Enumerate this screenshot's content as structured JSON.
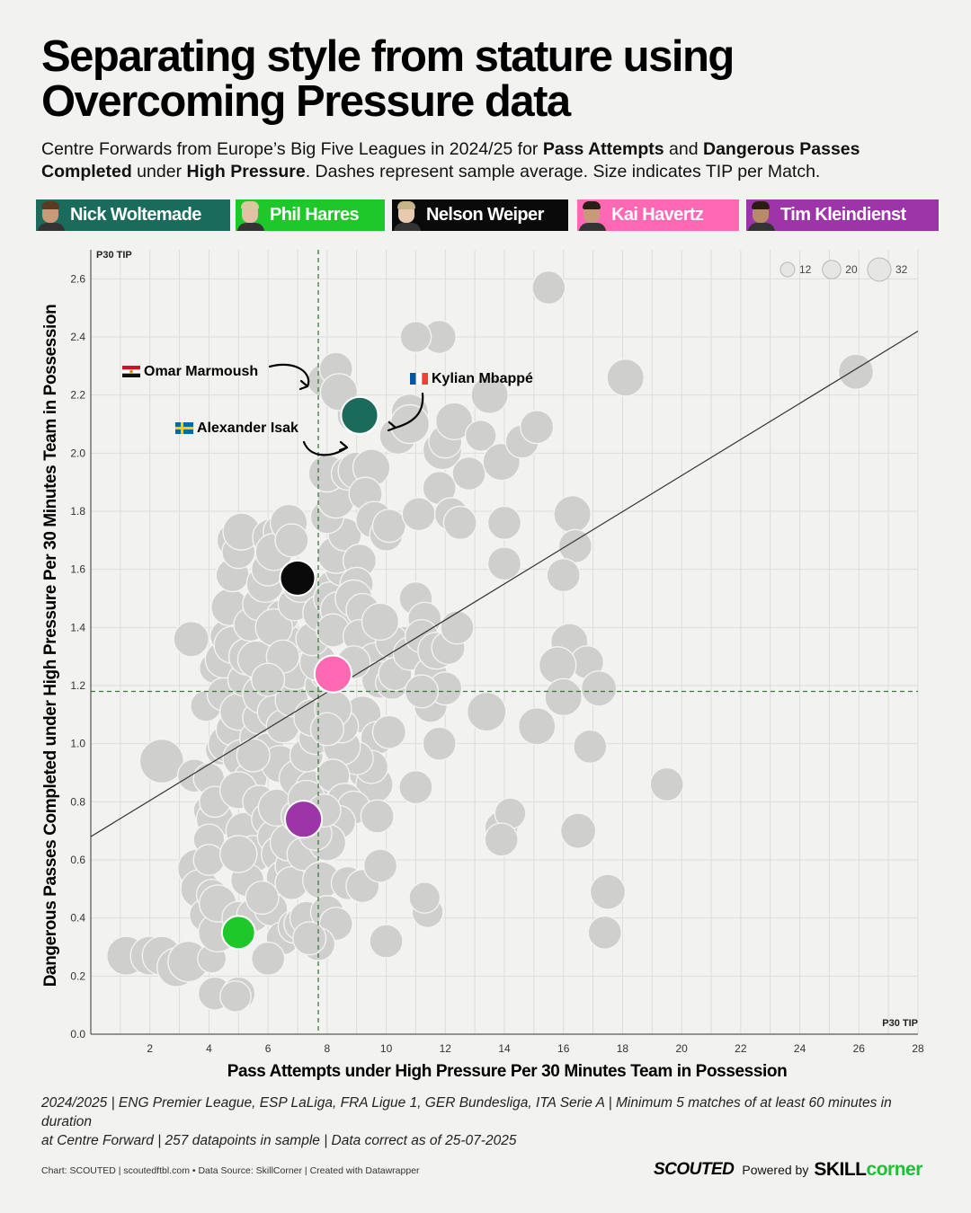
{
  "header": {
    "title": "Separating style from stature using Overcoming Pressure data",
    "subtitle_parts": [
      {
        "t": "Centre Forwards from Europe’s Big Five Leagues in 2024/25 for ",
        "b": false
      },
      {
        "t": "Pass Attempts",
        "b": true
      },
      {
        "t": " and ",
        "b": false
      },
      {
        "t": "Dangerous Passes Completed",
        "b": true
      },
      {
        "t": " under ",
        "b": false
      },
      {
        "t": "High Pressure",
        "b": true
      },
      {
        "t": ". Dashes represent sample average. Size indicates TIP per Match.",
        "b": false
      }
    ]
  },
  "legend": [
    {
      "name": "Nick Woltemade",
      "color": "#1a6b5c"
    },
    {
      "name": "Phil Harres",
      "color": "#1fc82a"
    },
    {
      "name": "Nelson Weiper",
      "color": "#0a0a0a"
    },
    {
      "name": "Kai Havertz",
      "color": "#ff69b4"
    },
    {
      "name": "Tim Kleindienst",
      "color": "#9c36a8"
    }
  ],
  "chart_data": {
    "type": "scatter",
    "xlabel": "Pass Attempts under High Pressure Per 30 Minutes Team in Possession",
    "ylabel": "Dangerous Passes Completed under High Pressure Per 30 Minutes Team in Possession",
    "xlim": [
      0,
      28
    ],
    "ylim": [
      0,
      2.7
    ],
    "xticks": [
      2,
      4,
      6,
      8,
      10,
      12,
      14,
      16,
      18,
      20,
      22,
      24,
      26,
      28
    ],
    "yticks": [
      0.0,
      0.2,
      0.4,
      0.6,
      0.8,
      1.0,
      1.2,
      1.4,
      1.6,
      1.8,
      2.0,
      2.2,
      2.4,
      2.6
    ],
    "x_axis_tag": "P30 TIP",
    "y_axis_tag": "P30 TIP",
    "avg_x": 7.7,
    "avg_y": 1.18,
    "trend_line": {
      "from": [
        0,
        0.68
      ],
      "to": [
        28,
        2.42
      ]
    },
    "size_legend": [
      {
        "label": "12",
        "value": 12
      },
      {
        "label": "20",
        "value": 20
      },
      {
        "label": "32",
        "value": 32
      }
    ],
    "background_points": [
      [
        1.2,
        0.27,
        22
      ],
      [
        2.0,
        0.27,
        22
      ],
      [
        2.4,
        0.27,
        22
      ],
      [
        2.9,
        0.23,
        22
      ],
      [
        3.3,
        0.25,
        24
      ],
      [
        4.1,
        0.26,
        12
      ],
      [
        4.2,
        0.14,
        16
      ],
      [
        2.4,
        0.94,
        28
      ],
      [
        3.5,
        0.89,
        16
      ],
      [
        3.6,
        0.57,
        22
      ],
      [
        3.7,
        0.5,
        22
      ],
      [
        3.9,
        0.41,
        16
      ],
      [
        4.1,
        0.48,
        14
      ],
      [
        4.0,
        0.77,
        14
      ],
      [
        4.0,
        0.88,
        14
      ],
      [
        4.2,
        0.74,
        20
      ],
      [
        4.0,
        0.67,
        14
      ],
      [
        4.0,
        0.6,
        14
      ],
      [
        4.2,
        0.8,
        14
      ],
      [
        4.3,
        0.35,
        22
      ],
      [
        4.3,
        0.45,
        20
      ],
      [
        3.9,
        1.13,
        14
      ],
      [
        4.2,
        1.26,
        14
      ],
      [
        4.4,
        0.98,
        14
      ],
      [
        3.4,
        1.36,
        18
      ],
      [
        4.6,
        1.0,
        20
      ],
      [
        4.5,
        1.17,
        16
      ],
      [
        4.5,
        1.29,
        20
      ],
      [
        4.6,
        1.37,
        16
      ],
      [
        4.8,
        1.34,
        20
      ],
      [
        4.7,
        1.47,
        20
      ],
      [
        4.8,
        1.58,
        16
      ],
      [
        4.9,
        1.7,
        20
      ],
      [
        5.0,
        1.66,
        16
      ],
      [
        5.1,
        1.73,
        20
      ],
      [
        4.8,
        1.05,
        16
      ],
      [
        5.0,
        1.11,
        20
      ],
      [
        5.2,
        1.22,
        16
      ],
      [
        5.3,
        1.3,
        20
      ],
      [
        5.1,
        0.95,
        20
      ],
      [
        5.4,
        0.88,
        16
      ],
      [
        5.0,
        0.84,
        20
      ],
      [
        5.2,
        0.7,
        20
      ],
      [
        5.5,
        0.62,
        20
      ],
      [
        5.3,
        0.53,
        16
      ],
      [
        5.0,
        0.4,
        16
      ],
      [
        5.5,
        0.41,
        16
      ],
      [
        5.0,
        0.62,
        20
      ],
      [
        5.6,
        1.02,
        16
      ],
      [
        5.7,
        1.09,
        16
      ],
      [
        5.8,
        1.17,
        22
      ],
      [
        5.9,
        1.25,
        16
      ],
      [
        5.6,
        1.29,
        20
      ],
      [
        5.4,
        1.41,
        16
      ],
      [
        5.7,
        1.48,
        16
      ],
      [
        5.9,
        1.55,
        20
      ],
      [
        6.1,
        1.71,
        20
      ],
      [
        6.0,
        1.6,
        16
      ],
      [
        6.4,
        1.73,
        16
      ],
      [
        6.2,
        1.66,
        20
      ],
      [
        6.7,
        1.76,
        20
      ],
      [
        6.8,
        1.7,
        16
      ],
      [
        6.0,
        0.98,
        16
      ],
      [
        6.4,
        0.93,
        20
      ],
      [
        6.2,
        1.11,
        16
      ],
      [
        6.5,
        1.06,
        16
      ],
      [
        6.8,
        1.15,
        16
      ],
      [
        6.9,
        1.25,
        20
      ],
      [
        6.7,
        1.35,
        16
      ],
      [
        6.5,
        1.44,
        16
      ],
      [
        6.2,
        1.4,
        20
      ],
      [
        6.9,
        1.48,
        16
      ],
      [
        7.1,
        1.55,
        20
      ],
      [
        6.5,
        1.3,
        16
      ],
      [
        6.0,
        1.22,
        16
      ],
      [
        5.5,
        0.96,
        16
      ],
      [
        5.7,
        0.8,
        16
      ],
      [
        6.0,
        0.74,
        16
      ],
      [
        6.2,
        0.68,
        16
      ],
      [
        6.4,
        0.62,
        20
      ],
      [
        6.5,
        0.54,
        16
      ],
      [
        6.8,
        0.58,
        16
      ],
      [
        6.7,
        0.66,
        20
      ],
      [
        6.3,
        0.78,
        20
      ],
      [
        6.1,
        0.43,
        16
      ],
      [
        5.8,
        0.47,
        16
      ],
      [
        6.5,
        0.33,
        16
      ],
      [
        6.9,
        0.37,
        16
      ],
      [
        7.1,
        0.38,
        16
      ],
      [
        7.3,
        0.4,
        16
      ],
      [
        6.8,
        0.52,
        16
      ],
      [
        7.2,
        0.62,
        16
      ],
      [
        6.0,
        0.26,
        16
      ],
      [
        5.0,
        0.14,
        16
      ],
      [
        4.9,
        0.13,
        14
      ],
      [
        7.0,
        0.75,
        16
      ],
      [
        7.0,
        0.88,
        20
      ],
      [
        7.3,
        0.78,
        16
      ],
      [
        7.5,
        0.85,
        16
      ],
      [
        7.3,
        0.96,
        16
      ],
      [
        7.6,
        1.02,
        16
      ],
      [
        7.5,
        1.09,
        20
      ],
      [
        7.8,
        1.2,
        16
      ],
      [
        8.0,
        1.24,
        16
      ],
      [
        7.7,
        1.28,
        20
      ],
      [
        7.5,
        1.36,
        16
      ],
      [
        7.8,
        1.45,
        20
      ],
      [
        8.2,
        1.54,
        16
      ],
      [
        8.1,
        1.5,
        16
      ],
      [
        8.4,
        1.46,
        20
      ],
      [
        8.2,
        1.39,
        16
      ],
      [
        8.5,
        1.6,
        16
      ],
      [
        8.3,
        1.65,
        20
      ],
      [
        8.6,
        1.72,
        16
      ],
      [
        8.0,
        1.78,
        16
      ],
      [
        8.3,
        1.84,
        20
      ],
      [
        8.0,
        1.93,
        20
      ],
      [
        8.7,
        1.93,
        16
      ],
      [
        9.0,
        1.94,
        20
      ],
      [
        8.9,
        2.13,
        16
      ],
      [
        7.9,
        2.25,
        16
      ],
      [
        8.3,
        2.29,
        16
      ],
      [
        8.4,
        2.21,
        20
      ],
      [
        9.5,
        1.95,
        20
      ],
      [
        9.3,
        1.86,
        16
      ],
      [
        9.6,
        1.77,
        20
      ],
      [
        10.0,
        1.72,
        16
      ],
      [
        10.1,
        1.75,
        16
      ],
      [
        9.1,
        1.63,
        16
      ],
      [
        9.0,
        1.55,
        16
      ],
      [
        8.9,
        1.5,
        20
      ],
      [
        9.2,
        1.46,
        16
      ],
      [
        9.1,
        1.37,
        16
      ],
      [
        9.6,
        1.29,
        16
      ],
      [
        9.8,
        1.22,
        20
      ],
      [
        10.2,
        1.21,
        16
      ],
      [
        10.6,
        1.34,
        20
      ],
      [
        10.2,
        1.35,
        16
      ],
      [
        9.8,
        1.42,
        20
      ],
      [
        8.9,
        1.28,
        16
      ],
      [
        9.2,
        1.1,
        20
      ],
      [
        9.7,
        1.02,
        16
      ],
      [
        9.3,
        0.9,
        16
      ],
      [
        9.6,
        0.86,
        20
      ],
      [
        9.5,
        0.92,
        16
      ],
      [
        9.0,
        0.95,
        16
      ],
      [
        8.5,
        0.99,
        20
      ],
      [
        8.5,
        1.06,
        16
      ],
      [
        8.2,
        1.12,
        20
      ],
      [
        8.0,
        1.05,
        16
      ],
      [
        8.2,
        0.89,
        16
      ],
      [
        8.6,
        0.8,
        20
      ],
      [
        8.9,
        0.78,
        16
      ],
      [
        8.4,
        0.73,
        16
      ],
      [
        8.0,
        0.66,
        20
      ],
      [
        7.6,
        0.69,
        16
      ],
      [
        7.3,
        0.81,
        20
      ],
      [
        7.9,
        0.77,
        16
      ],
      [
        7.8,
        0.53,
        20
      ],
      [
        8.0,
        0.42,
        16
      ],
      [
        8.3,
        0.38,
        16
      ],
      [
        7.7,
        0.31,
        16
      ],
      [
        7.4,
        0.33,
        16
      ],
      [
        8.7,
        0.52,
        16
      ],
      [
        9.2,
        0.51,
        16
      ],
      [
        9.7,
        0.75,
        16
      ],
      [
        9.8,
        0.58,
        16
      ],
      [
        10.0,
        0.32,
        16
      ],
      [
        11.0,
        0.85,
        16
      ],
      [
        10.1,
        1.04,
        16
      ],
      [
        10.3,
        1.24,
        16
      ],
      [
        10.8,
        1.31,
        16
      ],
      [
        11.0,
        1.5,
        16
      ],
      [
        11.3,
        1.43,
        16
      ],
      [
        11.2,
        1.37,
        16
      ],
      [
        11.5,
        1.13,
        16
      ],
      [
        11.5,
        1.24,
        16
      ],
      [
        11.7,
        1.32,
        20
      ],
      [
        12.1,
        1.33,
        16
      ],
      [
        12.4,
        1.4,
        16
      ],
      [
        12.0,
        1.19,
        16
      ],
      [
        11.8,
        1.0,
        16
      ],
      [
        11.2,
        1.18,
        16
      ],
      [
        11.4,
        0.42,
        14
      ],
      [
        10.4,
        2.06,
        20
      ],
      [
        10.8,
        2.14,
        20
      ],
      [
        10.8,
        2.1,
        22
      ],
      [
        11.1,
        1.79,
        16
      ],
      [
        11.9,
        2.01,
        22
      ],
      [
        12.0,
        2.04,
        16
      ],
      [
        11.8,
        1.88,
        16
      ],
      [
        12.2,
        1.79,
        16
      ],
      [
        12.5,
        1.76,
        16
      ],
      [
        12.3,
        2.11,
        20
      ],
      [
        13.2,
        2.06,
        14
      ],
      [
        12.8,
        1.93,
        16
      ],
      [
        13.5,
        2.2,
        20
      ],
      [
        13.9,
        1.97,
        20
      ],
      [
        14.6,
        2.04,
        16
      ],
      [
        15.1,
        2.09,
        16
      ],
      [
        11.8,
        2.4,
        16
      ],
      [
        11.0,
        2.4,
        14
      ],
      [
        15.5,
        2.57,
        16
      ],
      [
        18.1,
        2.26,
        20
      ],
      [
        25.9,
        2.28,
        18
      ],
      [
        16.3,
        1.79,
        20
      ],
      [
        16.4,
        1.68,
        16
      ],
      [
        14.0,
        1.76,
        16
      ],
      [
        14.0,
        1.62,
        16
      ],
      [
        16.0,
        1.58,
        16
      ],
      [
        16.2,
        1.35,
        20
      ],
      [
        16.8,
        1.28,
        16
      ],
      [
        15.8,
        1.27,
        20
      ],
      [
        17.2,
        1.19,
        18
      ],
      [
        16.0,
        1.16,
        20
      ],
      [
        15.1,
        1.06,
        20
      ],
      [
        13.4,
        1.11,
        22
      ],
      [
        16.9,
        0.99,
        16
      ],
      [
        19.5,
        0.86,
        16
      ],
      [
        16.5,
        0.7,
        18
      ],
      [
        17.5,
        0.49,
        18
      ],
      [
        17.4,
        0.35,
        16
      ],
      [
        13.9,
        0.71,
        16
      ],
      [
        14.2,
        0.76,
        14
      ],
      [
        13.9,
        0.67,
        16
      ],
      [
        11.3,
        0.47,
        14
      ]
    ],
    "highlight_points": [
      {
        "player": "Nick Woltemade",
        "x": 9.1,
        "y": 2.13,
        "size": 20,
        "color": "#1a6b5c"
      },
      {
        "player": "Nelson Weiper",
        "x": 7.0,
        "y": 1.57,
        "size": 18,
        "color": "#0a0a0a"
      },
      {
        "player": "Kai Havertz",
        "x": 8.2,
        "y": 1.24,
        "size": 20,
        "color": "#ff69b4"
      },
      {
        "player": "Tim Kleindienst",
        "x": 7.2,
        "y": 0.74,
        "size": 20,
        "color": "#9c36a8"
      },
      {
        "player": "Phil Harres",
        "x": 5.0,
        "y": 0.35,
        "size": 16,
        "color": "#1fc82a"
      }
    ],
    "annotations": [
      {
        "text": "Omar Marmoush",
        "flag": "egypt",
        "point_x": 8.4,
        "point_y": 2.21
      },
      {
        "text": "Kylian Mbappé",
        "flag": "france",
        "point_x": 10.8,
        "point_y": 2.14
      },
      {
        "text": "Alexander Isak",
        "flag": "sweden",
        "point_x": 9.0,
        "point_y": 2.1
      }
    ]
  },
  "footer": {
    "note_line1": "2024/2025 | ENG Premier League, ESP LaLiga, FRA Ligue 1, GER Bundesliga, ITA Serie A | Minimum 5 matches of at least 60 minutes in duration",
    "note_line2": "at Centre Forward | 257 datapoints in sample | Data correct as of 25-07-2025",
    "credits": "Chart: SCOUTED | scoutedftbl.com • Data Source: SkillCorner | Created with Datawrapper",
    "brand_scouted": "SCOUTED",
    "brand_powered": "Powered by",
    "brand_skill": "SKILL",
    "brand_corner": "corner"
  }
}
